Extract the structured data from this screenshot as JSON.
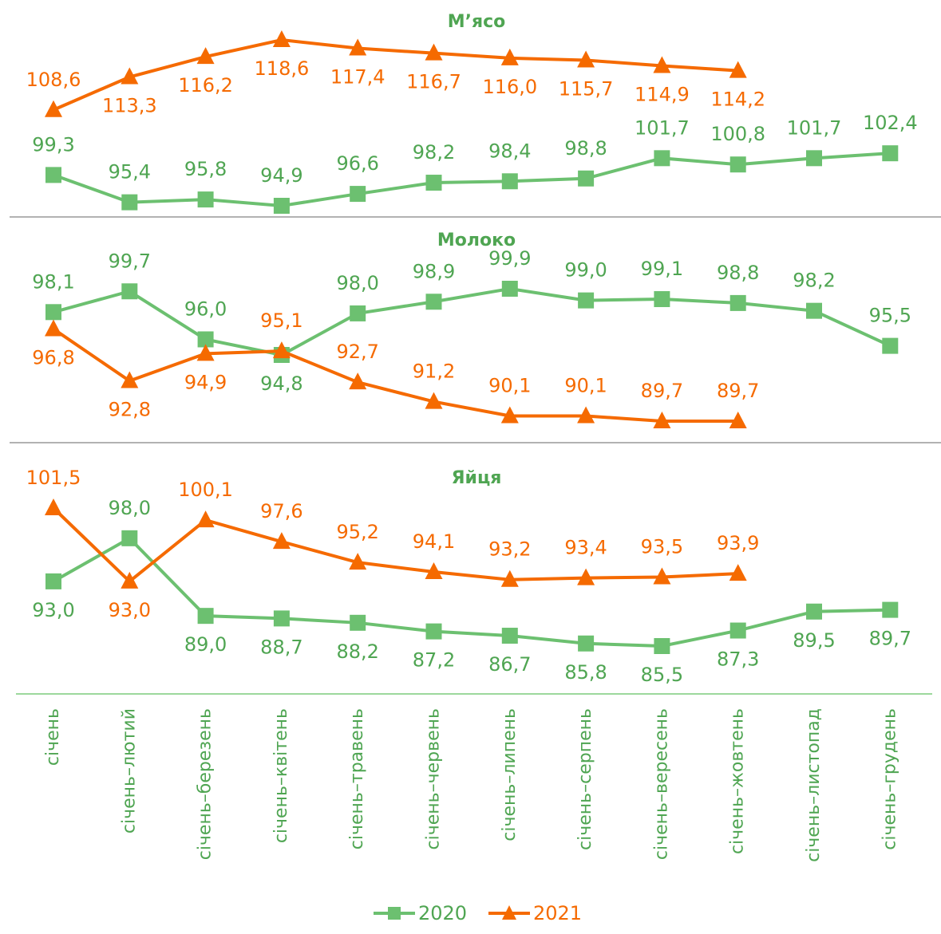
{
  "chart_data": [
    {
      "type": "line",
      "title": "М’ясо",
      "series": [
        {
          "color": "#6cc070",
          "marker": "square",
          "values": [
            99.3,
            95.4,
            95.8,
            94.9,
            96.6,
            98.2,
            98.4,
            98.8,
            101.7,
            100.8,
            101.7,
            102.4
          ],
          "value_labels": [
            "99,3",
            "95,4",
            "95,8",
            "94,9",
            "96,6",
            "98,2",
            "98,4",
            "98,8",
            "101,7",
            "100,8",
            "101,7",
            "102,4"
          ]
        },
        {
          "color": "#f56a00",
          "marker": "triangle",
          "values": [
            108.6,
            113.3,
            116.2,
            118.6,
            117.4,
            116.7,
            116.0,
            115.7,
            114.9,
            114.2,
            null,
            null
          ],
          "value_labels": [
            "108,6",
            "113,3",
            "116,2",
            "118,6",
            "117,4",
            "116,7",
            "116,0",
            "115,7",
            "114,9",
            "114,2",
            null,
            null
          ]
        }
      ]
    },
    {
      "type": "line",
      "title": "Молоко",
      "series": [
        {
          "color": "#6cc070",
          "marker": "square",
          "values": [
            98.1,
            99.7,
            96.0,
            94.8,
            98.0,
            98.9,
            99.9,
            99.0,
            99.1,
            98.8,
            98.2,
            95.5
          ],
          "value_labels": [
            "98,1",
            "99,7",
            "96,0",
            "94,8",
            "98,0",
            "98,9",
            "99,9",
            "99,0",
            "99,1",
            "98,8",
            "98,2",
            "95,5"
          ]
        },
        {
          "color": "#f56a00",
          "marker": "triangle",
          "values": [
            96.8,
            92.8,
            94.9,
            95.1,
            92.7,
            91.2,
            90.1,
            90.1,
            89.7,
            89.7,
            null,
            null
          ],
          "value_labels": [
            "96,8",
            "92,8",
            "94,9",
            "95,1",
            "92,7",
            "91,2",
            "90,1",
            "90,1",
            "89,7",
            "89,7",
            null,
            null
          ]
        }
      ]
    },
    {
      "type": "line",
      "title": "Яйця",
      "categories": [
        "січень",
        "січень–лютий",
        "січень–березень",
        "січень–квітень",
        "січень–травень",
        "січень–червень",
        "січень–липень",
        "січень–серпень",
        "січень–вересень",
        "січень–жовтень",
        "січень–листопад",
        "січень–грудень"
      ],
      "series": [
        {
          "name": "2020",
          "color": "#6cc070",
          "marker": "square",
          "values": [
            93.0,
            98.0,
            89.0,
            88.7,
            88.2,
            87.2,
            86.7,
            85.8,
            85.5,
            87.3,
            89.5,
            89.7
          ],
          "value_labels": [
            "93,0",
            "98,0",
            "89,0",
            "88,7",
            "88,2",
            "87,2",
            "86,7",
            "85,8",
            "85,5",
            "87,3",
            "89,5",
            "89,7"
          ]
        },
        {
          "name": "2021",
          "color": "#f56a00",
          "marker": "triangle",
          "values": [
            101.5,
            93.0,
            100.1,
            97.6,
            95.2,
            94.1,
            93.2,
            93.4,
            93.5,
            93.9,
            null,
            null
          ],
          "value_labels": [
            "101,5",
            "93,0",
            "100,1",
            "97,6",
            "95,2",
            "94,1",
            "93,2",
            "93,4",
            "93,5",
            "93,9",
            null,
            null
          ]
        }
      ]
    }
  ]
}
